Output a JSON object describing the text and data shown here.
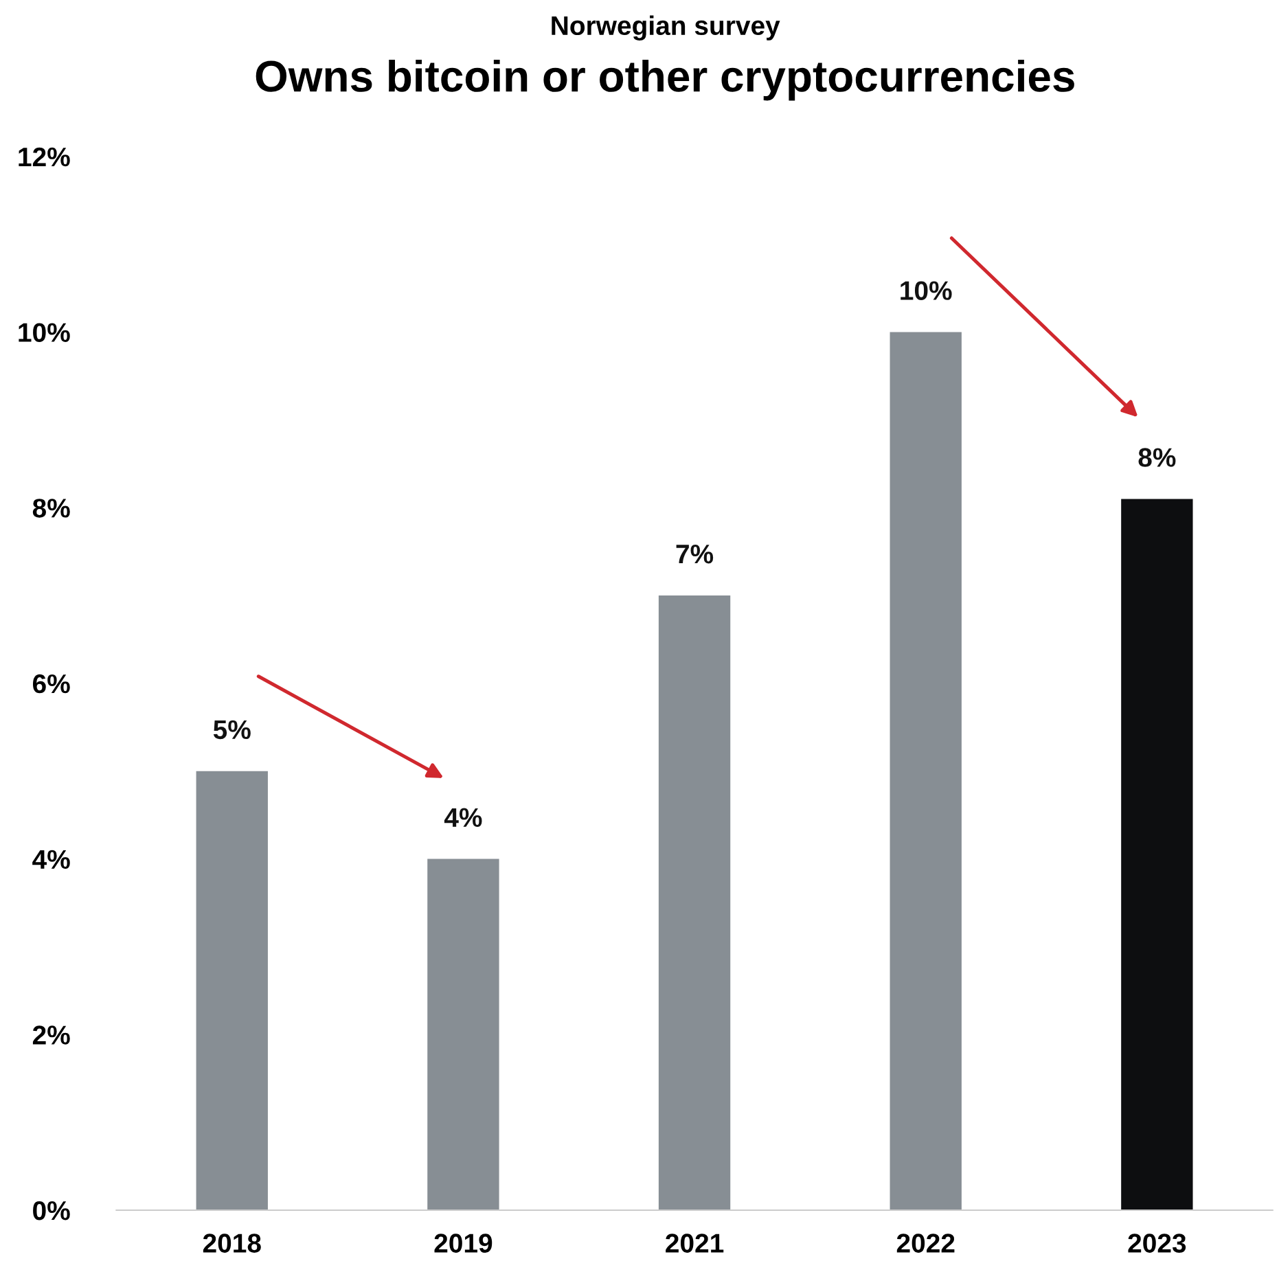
{
  "chart_data": {
    "type": "bar",
    "subtitle": "Norwegian survey",
    "title": "Owns bitcoin or other cryptocurrencies",
    "categories": [
      "2018",
      "2019",
      "2021",
      "2022",
      "2023"
    ],
    "values": [
      5,
      4,
      7,
      10,
      8.1
    ],
    "value_labels": [
      "5%",
      "4%",
      "7%",
      "10%",
      "8%"
    ],
    "colors": [
      "#878e94",
      "#878e94",
      "#878e94",
      "#878e94",
      "#0d0e10"
    ],
    "ylim": [
      0,
      12
    ],
    "yticks": [
      {
        "value": 0,
        "label": "0%"
      },
      {
        "value": 2,
        "label": "2%"
      },
      {
        "value": 4,
        "label": "4%"
      },
      {
        "value": 6,
        "label": "6%"
      },
      {
        "value": 8,
        "label": "8%"
      },
      {
        "value": 10,
        "label": "10%"
      },
      {
        "value": 12,
        "label": "12%"
      }
    ],
    "grid": false,
    "legend": false
  }
}
